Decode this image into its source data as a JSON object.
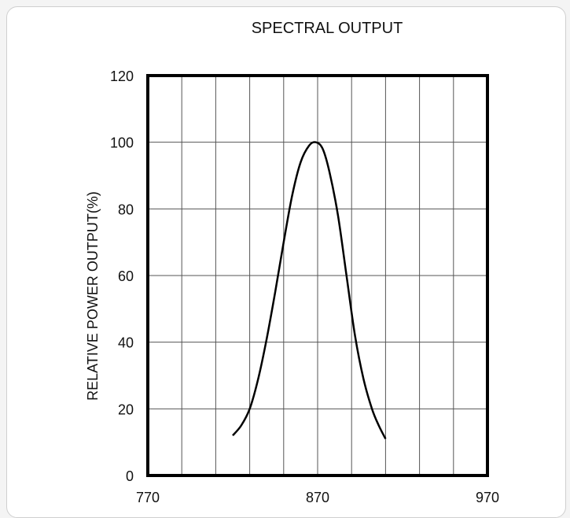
{
  "chart_data": {
    "type": "line",
    "title": "SPECTRAL OUTPUT",
    "xlabel": "",
    "ylabel": "RELATIVE POWER OUTPUT(%)",
    "xlim": [
      770,
      970
    ],
    "ylim": [
      0,
      120
    ],
    "x_ticks": [
      "770",
      "870",
      "970"
    ],
    "y_ticks": [
      "0",
      "20",
      "40",
      "60",
      "80",
      "100",
      "120"
    ],
    "grid": true,
    "grid_x_step": 20,
    "grid_y_step": 20,
    "series": [
      {
        "color": "#000000",
        "x": [
          820,
          825,
          830,
          835,
          840,
          845,
          850,
          855,
          860,
          865,
          869,
          873,
          877,
          882,
          887,
          892,
          897,
          902,
          906,
          910
        ],
        "y": [
          12,
          15,
          20,
          29,
          41,
          55,
          70,
          84,
          94,
          99,
          100,
          98,
          91,
          78,
          60,
          42,
          29,
          20,
          15,
          11
        ]
      }
    ]
  }
}
